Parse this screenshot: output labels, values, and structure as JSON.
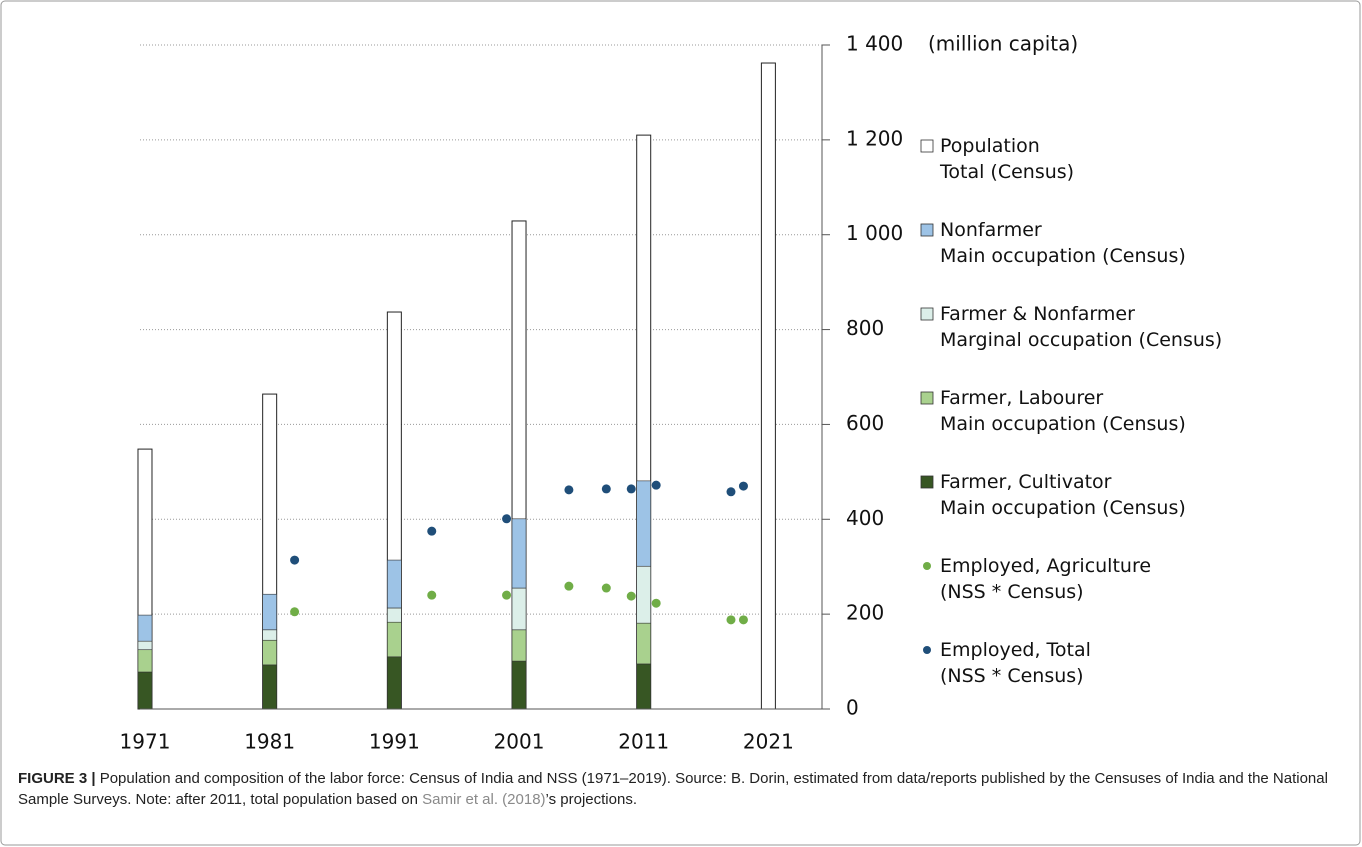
{
  "chart_data": {
    "type": "bar",
    "y_label": "(million capita)",
    "x": [
      1971,
      1981,
      1991,
      2001,
      2011,
      2021
    ],
    "xlim": [
      1970.6,
      2025.3
    ],
    "xticks": [
      1971,
      1981,
      1991,
      2001,
      2011,
      2021
    ],
    "ylim": [
      0,
      1400
    ],
    "yticks": [
      0,
      200,
      400,
      600,
      800,
      {
        "value": 1000,
        "label": "1 000"
      },
      {
        "value": 1200,
        "label": "1 200"
      },
      {
        "value": 1400,
        "label": "1 400"
      }
    ],
    "grid": true,
    "legend": "right",
    "series": [
      {
        "name": "Population\nTotal (Census)",
        "type": "bar",
        "stacked": false,
        "color": "#ffffff",
        "values": [
          548,
          664,
          837,
          1029,
          1210,
          1362
        ]
      },
      {
        "name": "Nonfarmer\nMain occupation (Census)",
        "type": "bar",
        "stacked": true,
        "color": "#9dc3e6",
        "values": [
          55,
          75,
          101,
          146,
          180,
          null
        ]
      },
      {
        "name": "Farmer & Nonfarmer\nMarginal occupation (Census)",
        "type": "bar",
        "stacked": true,
        "color": "#dcefe9",
        "values": [
          18,
          22,
          30,
          88,
          120,
          null
        ]
      },
      {
        "name": "Farmer, Labourer\nMain occupation (Census)",
        "type": "bar",
        "stacked": true,
        "color": "#a9d18e",
        "values": [
          47,
          52,
          73,
          66,
          86,
          null
        ]
      },
      {
        "name": "Farmer, Cultivator\nMain occupation (Census)",
        "type": "bar",
        "stacked": true,
        "color": "#375623",
        "values": [
          78,
          93,
          110,
          101,
          95,
          null
        ]
      },
      {
        "name": "Employed, Agriculture\n(NSS * Census)",
        "type": "scatter",
        "color": "#70ad47",
        "x": [
          1983,
          1994,
          2000,
          2005,
          2008,
          2010,
          2012,
          2018,
          2019
        ],
        "values": [
          205,
          240,
          240,
          259,
          255,
          238,
          223,
          188,
          188
        ]
      },
      {
        "name": "Employed, Total\n(NSS * Census)",
        "type": "scatter",
        "color": "#1f4e79",
        "x": [
          1983,
          1994,
          2000,
          2005,
          2008,
          2010,
          2012,
          2018,
          2019
        ],
        "values": [
          314,
          375,
          401,
          462,
          464,
          464,
          472,
          458,
          470
        ]
      }
    ]
  },
  "caption": {
    "label": "FIGURE 3 |",
    "text": " Population and composition of the labor force: Census of India and NSS (1971–2019). Source: B. Dorin, estimated from data/reports published by the Censuses of India and the National Sample Surveys. Note: after 2011, total population based on ",
    "link": "Samir et al. (2018)",
    "after": "’s projections."
  }
}
